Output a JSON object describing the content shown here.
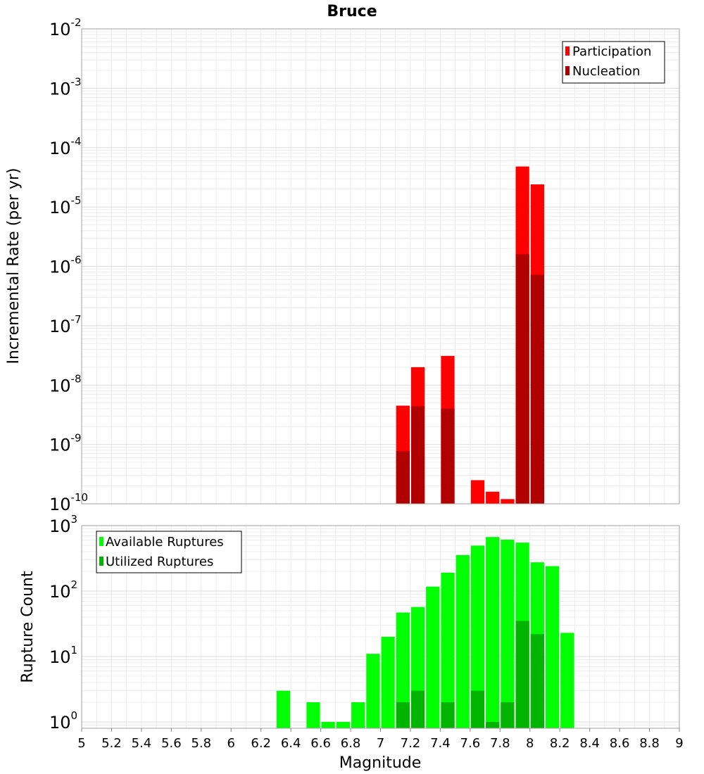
{
  "chart_data": [
    {
      "type": "bar",
      "panel": "top",
      "title": "Bruce",
      "xlabel": "",
      "ylabel": "Incremental Rate (per yr)",
      "yscale": "log",
      "ylim": [
        1e-10,
        0.01
      ],
      "xlim": [
        5,
        9
      ],
      "bar_width": 0.1,
      "grid": true,
      "legend_position": "top-right",
      "yticks": [
        {
          "base": "10",
          "exp": "-2",
          "value": 0.01
        },
        {
          "base": "10",
          "exp": "-3",
          "value": 0.001
        },
        {
          "base": "10",
          "exp": "-4",
          "value": 0.0001
        },
        {
          "base": "10",
          "exp": "-5",
          "value": 1e-05
        },
        {
          "base": "10",
          "exp": "-6",
          "value": 1e-06
        },
        {
          "base": "10",
          "exp": "-7",
          "value": 1e-07
        },
        {
          "base": "10",
          "exp": "-8",
          "value": 1e-08
        },
        {
          "base": "10",
          "exp": "-9",
          "value": 1e-09
        },
        {
          "base": "10",
          "exp": "-10",
          "value": 1e-10
        }
      ],
      "series": [
        {
          "name": "Participation",
          "color": "#ff0000",
          "points": [
            {
              "x": 7.15,
              "y": 4.5e-09
            },
            {
              "x": 7.25,
              "y": 2e-08
            },
            {
              "x": 7.45,
              "y": 3.1e-08
            },
            {
              "x": 7.65,
              "y": 2.5e-10
            },
            {
              "x": 7.75,
              "y": 1.6e-10
            },
            {
              "x": 7.85,
              "y": 1.2e-10
            },
            {
              "x": 7.95,
              "y": 4.8e-05
            },
            {
              "x": 8.05,
              "y": 2.4e-05
            }
          ]
        },
        {
          "name": "Nucleation",
          "color": "#b00000",
          "points": [
            {
              "x": 7.15,
              "y": 7.7e-10
            },
            {
              "x": 7.25,
              "y": 4.4e-09
            },
            {
              "x": 7.45,
              "y": 4e-09
            },
            {
              "x": 7.95,
              "y": 1.6e-06
            },
            {
              "x": 8.05,
              "y": 7.2e-07
            }
          ]
        }
      ]
    },
    {
      "type": "bar",
      "panel": "bottom",
      "title": "",
      "xlabel": "Magnitude",
      "ylabel": "Rupture Count",
      "yscale": "log",
      "ylim": [
        0.8,
        1000
      ],
      "xlim": [
        5,
        9
      ],
      "bar_width": 0.1,
      "grid": true,
      "legend_position": "top-left",
      "xticks": [
        "5",
        "5.2",
        "5.4",
        "5.6",
        "5.8",
        "6",
        "6.2",
        "6.4",
        "6.6",
        "6.8",
        "7",
        "7.2",
        "7.4",
        "7.6",
        "7.8",
        "8",
        "8.2",
        "8.4",
        "8.6",
        "8.8",
        "9"
      ],
      "yticks": [
        {
          "base": "10",
          "exp": "3",
          "value": 1000
        },
        {
          "base": "10",
          "exp": "2",
          "value": 100
        },
        {
          "base": "10",
          "exp": "1",
          "value": 10
        },
        {
          "base": "10",
          "exp": "0",
          "value": 1
        }
      ],
      "series": [
        {
          "name": "Available Ruptures",
          "color": "#00ff00",
          "points": [
            {
              "x": 6.35,
              "y": 3
            },
            {
              "x": 6.55,
              "y": 2
            },
            {
              "x": 6.65,
              "y": 1
            },
            {
              "x": 6.75,
              "y": 1
            },
            {
              "x": 6.85,
              "y": 2
            },
            {
              "x": 6.95,
              "y": 11
            },
            {
              "x": 7.05,
              "y": 20
            },
            {
              "x": 7.15,
              "y": 47
            },
            {
              "x": 7.25,
              "y": 57
            },
            {
              "x": 7.35,
              "y": 117
            },
            {
              "x": 7.45,
              "y": 191
            },
            {
              "x": 7.55,
              "y": 355
            },
            {
              "x": 7.65,
              "y": 495
            },
            {
              "x": 7.75,
              "y": 670
            },
            {
              "x": 7.85,
              "y": 610
            },
            {
              "x": 7.95,
              "y": 550
            },
            {
              "x": 8.05,
              "y": 275
            },
            {
              "x": 8.15,
              "y": 240
            },
            {
              "x": 8.25,
              "y": 23
            }
          ]
        },
        {
          "name": "Utilized Ruptures",
          "color": "#00b400",
          "points": [
            {
              "x": 7.15,
              "y": 2
            },
            {
              "x": 7.25,
              "y": 3
            },
            {
              "x": 7.45,
              "y": 2
            },
            {
              "x": 7.65,
              "y": 3
            },
            {
              "x": 7.75,
              "y": 1
            },
            {
              "x": 7.85,
              "y": 2
            },
            {
              "x": 7.95,
              "y": 35
            },
            {
              "x": 8.05,
              "y": 22
            }
          ]
        }
      ]
    }
  ]
}
